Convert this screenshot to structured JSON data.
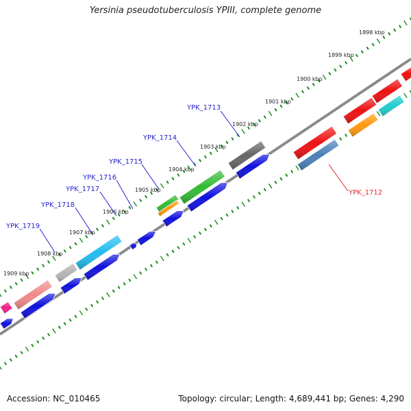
{
  "title": "Yersinia pseudotuberculosis YPIII, complete genome",
  "footer": {
    "accession": "Accession: NC_010465",
    "summary": "Topology: circular; Length: 4,689,441 bp; Genes: 4,290"
  },
  "ruler": {
    "unit": "kbp",
    "labels": [
      "1898 kbp",
      "1899 kbp",
      "1900 kbp",
      "1901 kbp",
      "1902 kbp",
      "1903 kbp",
      "1904 kbp",
      "1905 kbp",
      "1906 kbp",
      "1907 kbp",
      "1908 kbp",
      "1909 kbp"
    ]
  },
  "gene_labels": [
    {
      "text": "YPK_1712",
      "color": "#ee2222"
    },
    {
      "text": "YPK_1713",
      "color": "#2222cc"
    },
    {
      "text": "YPK_1714",
      "color": "#2222cc"
    },
    {
      "text": "YPK_1715",
      "color": "#2222cc"
    },
    {
      "text": "YPK_1716",
      "color": "#2222cc"
    },
    {
      "text": "YPK_1717",
      "color": "#2222cc"
    },
    {
      "text": "YPK_1718",
      "color": "#2222cc"
    },
    {
      "text": "YPK_1719",
      "color": "#2222cc"
    }
  ],
  "colors": {
    "backbone": "#8a8a8a",
    "tick": "#1a8a1a",
    "cds_strand": "#1010dd",
    "red": "#ee1111",
    "orange": "#ff9910",
    "steel": "#4a80b8",
    "dark_gray": "#666666",
    "green": "#33bb33",
    "light_blue": "#22bbee",
    "light_gray": "#b5b5b5",
    "salmon": "#f08a8a",
    "pink": "#ee2288",
    "cyan": "#22cccc"
  }
}
